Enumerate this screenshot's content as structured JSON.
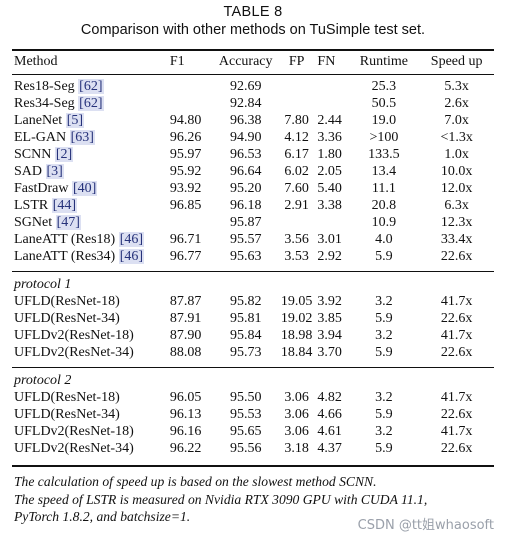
{
  "caption": {
    "label": "TABLE 8",
    "title": "Comparison with other methods on TuSimple test set."
  },
  "table": {
    "headers": [
      "Method",
      "F1",
      "Accuracy",
      "FP",
      "FN",
      "Runtime",
      "Speed up"
    ],
    "group1": [
      {
        "method": "Res18-Seg",
        "ref": "[62]",
        "f1": "",
        "acc": "92.69",
        "fp": "",
        "fn": "",
        "rt": "25.3",
        "sp": "5.3x"
      },
      {
        "method": "Res34-Seg",
        "ref": "[62]",
        "f1": "",
        "acc": "92.84",
        "fp": "",
        "fn": "",
        "rt": "50.5",
        "sp": "2.6x"
      },
      {
        "method": "LaneNet",
        "ref": "[5]",
        "f1": "94.80",
        "acc": "96.38",
        "fp": "7.80",
        "fn": "2.44",
        "rt": "19.0",
        "sp": "7.0x"
      },
      {
        "method": "EL-GAN",
        "ref": "[63]",
        "f1": "96.26",
        "acc": "94.90",
        "fp": "4.12",
        "fn": "3.36",
        "rt": ">100",
        "sp": "<1.3x"
      },
      {
        "method": "SCNN",
        "ref": "[2]",
        "f1": "95.97",
        "acc": "96.53",
        "fp": "6.17",
        "fn": "1.80",
        "rt": "133.5",
        "sp": "1.0x"
      },
      {
        "method": "SAD",
        "ref": "[3]",
        "f1": "95.92",
        "acc": "96.64",
        "fp": "6.02",
        "fn": "2.05",
        "rt": "13.4",
        "sp": "10.0x"
      },
      {
        "method": "FastDraw",
        "ref": "[40]",
        "f1": "93.92",
        "acc": "95.20",
        "fp": "7.60",
        "fn": "5.40",
        "rt": "11.1",
        "sp": "12.0x"
      },
      {
        "method": "LSTR",
        "ref": "[44]",
        "f1": "96.85",
        "acc": "96.18",
        "fp": "2.91",
        "fn": "3.38",
        "rt": "20.8",
        "sp": "6.3x"
      },
      {
        "method": "SGNet",
        "ref": "[47]",
        "f1": "",
        "acc": "95.87",
        "fp": "",
        "fn": "",
        "rt": "10.9",
        "sp": "12.3x"
      },
      {
        "method": "LaneATT (Res18)",
        "ref": "[46]",
        "f1": "96.71",
        "acc": "95.57",
        "fp": "3.56",
        "fn": "3.01",
        "rt": "4.0",
        "sp": "33.4x"
      },
      {
        "method": "LaneATT (Res34)",
        "ref": "[46]",
        "f1": "96.77",
        "acc": "95.63",
        "fp": "3.53",
        "fn": "2.92",
        "rt": "5.9",
        "sp": "22.6x"
      }
    ],
    "protocol1_label": "protocol 1",
    "protocol1": [
      {
        "method": "UFLD(ResNet-18)",
        "f1": "87.87",
        "acc": "95.82",
        "fp": "19.05",
        "fn": "3.92",
        "rt": "3.2",
        "sp": "41.7x"
      },
      {
        "method": "UFLD(ResNet-34)",
        "f1": "87.91",
        "acc": "95.81",
        "fp": "19.02",
        "fn": "3.85",
        "rt": "5.9",
        "sp": "22.6x"
      },
      {
        "method": "UFLDv2(ResNet-18)",
        "f1": "87.90",
        "acc": "95.84",
        "fp": "18.98",
        "fn": "3.94",
        "rt": "3.2",
        "sp": "41.7x"
      },
      {
        "method": "UFLDv2(ResNet-34)",
        "f1": "88.08",
        "acc": "95.73",
        "fp": "18.84",
        "fn": "3.70",
        "rt": "5.9",
        "sp": "22.6x"
      }
    ],
    "protocol2_label": "protocol 2",
    "protocol2": [
      {
        "method": "UFLD(ResNet-18)",
        "f1": "96.05",
        "acc": "95.50",
        "fp": "3.06",
        "fn": "4.82",
        "rt": "3.2",
        "sp": "41.7x"
      },
      {
        "method": "UFLD(ResNet-34)",
        "f1": "96.13",
        "acc": "95.53",
        "fp": "3.06",
        "fn": "4.66",
        "rt": "5.9",
        "sp": "22.6x"
      },
      {
        "method": "UFLDv2(ResNet-18)",
        "f1": "96.16",
        "acc": "95.65",
        "fp": "3.06",
        "fn": "4.61",
        "rt": "3.2",
        "sp": "41.7x"
      },
      {
        "method": "UFLDv2(ResNet-34)",
        "f1": "96.22",
        "acc": "95.56",
        "fp": "3.18",
        "fn": "4.37",
        "rt": "5.9",
        "sp": "22.6x"
      }
    ]
  },
  "footnotes": {
    "line1": "The calculation of speed up is based on the slowest method SCNN.",
    "line2": "The speed of LSTR is measured on Nvidia RTX 3090 GPU with CUDA 11.1,",
    "line3": "PyTorch 1.8.2, and batchsize=1."
  },
  "watermark": "CSDN @tt姐whaosoft",
  "colors": {
    "ref_background": "#dce0f2",
    "ref_text": "#26327a",
    "watermark": "#9aa0aa"
  }
}
